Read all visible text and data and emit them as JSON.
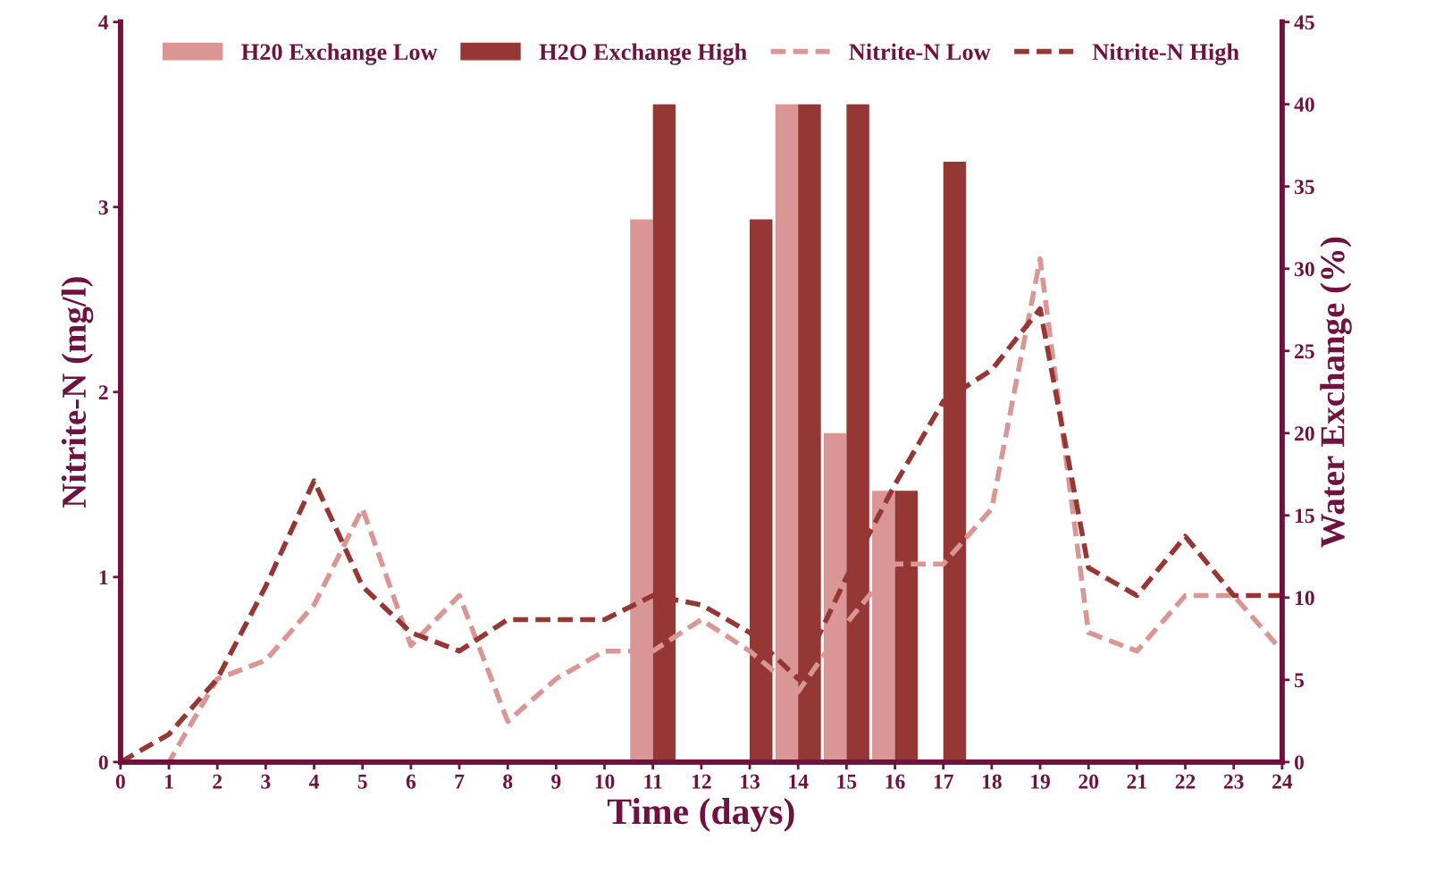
{
  "chart_data": {
    "type": "line",
    "xlabel": "Time (days)",
    "ylabel": "Nitrite-N (mg/l)",
    "y2label": "Water Exchange (%)",
    "xlim": [
      0,
      24
    ],
    "xticks": [
      0,
      1,
      2,
      3,
      4,
      5,
      6,
      7,
      8,
      9,
      10,
      11,
      12,
      13,
      14,
      15,
      16,
      17,
      18,
      19,
      20,
      21,
      22,
      23,
      24
    ],
    "ylim": [
      0,
      4
    ],
    "yticks": [
      0,
      1,
      2,
      3,
      4
    ],
    "y2lim": [
      0,
      45
    ],
    "y2ticks": [
      0,
      5,
      10,
      15,
      20,
      25,
      30,
      35,
      40,
      45
    ],
    "grid": false,
    "legend": "top",
    "line_style": "dashed",
    "marker": "none",
    "series": [
      {
        "name": "H20 Exchange Low",
        "type": "bar",
        "axis": "y2",
        "color": "#d99694",
        "x": [
          11,
          14,
          15,
          16
        ],
        "values": [
          33,
          40,
          20,
          16.5
        ]
      },
      {
        "name": "H2O Exchange High",
        "type": "bar",
        "axis": "y2",
        "color": "#953735",
        "x": [
          11,
          13,
          14,
          15,
          16,
          17
        ],
        "values": [
          40,
          33,
          40,
          40,
          16.5,
          36.5
        ]
      },
      {
        "name": "Nitrite-N Low",
        "color": "#d99694",
        "x": [
          0,
          1,
          2,
          3,
          4,
          5,
          6,
          7,
          8,
          9,
          10,
          11,
          12,
          13,
          14,
          15,
          16,
          17,
          18,
          19,
          20,
          21,
          22,
          23,
          24
        ],
        "values": [
          0,
          0,
          0.45,
          0.55,
          0.85,
          1.37,
          0.63,
          0.9,
          0.22,
          0.45,
          0.6,
          0.6,
          0.77,
          0.6,
          0.38,
          0.75,
          1.07,
          1.07,
          1.37,
          2.72,
          0.7,
          0.6,
          0.9,
          0.9,
          0.6
        ]
      },
      {
        "name": "Nitrite-N High",
        "color": "#953735",
        "x": [
          0,
          1,
          2,
          3,
          4,
          5,
          6,
          7,
          8,
          9,
          10,
          11,
          12,
          13,
          14,
          15,
          16,
          17,
          18,
          19,
          20,
          21,
          22,
          23,
          24
        ],
        "values": [
          0,
          0.15,
          0.45,
          0.95,
          1.52,
          0.95,
          0.7,
          0.6,
          0.77,
          0.77,
          0.77,
          0.9,
          0.85,
          0.7,
          0.45,
          1.0,
          1.5,
          1.95,
          2.12,
          2.45,
          1.05,
          0.9,
          1.22,
          0.9,
          0.9
        ]
      }
    ]
  }
}
